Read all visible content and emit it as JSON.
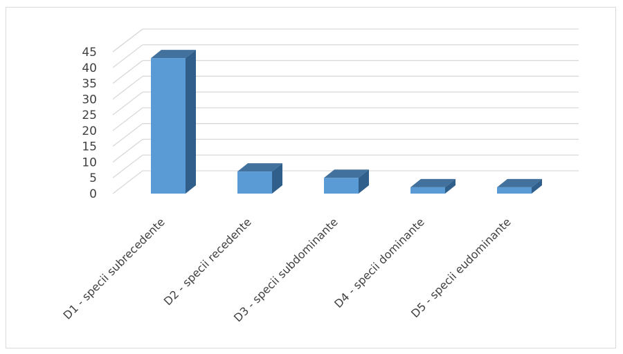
{
  "chart_data": {
    "type": "bar",
    "title": "",
    "xlabel": "",
    "ylabel": "",
    "categories": [
      "D1 - specii subrecedente",
      "D2 - specii recedente",
      "D3 - specii subdominante",
      "D4 - specii dominante",
      "D5 - specii eudominante"
    ],
    "values": [
      43,
      7,
      5,
      2,
      2
    ],
    "ylim": [
      0,
      45
    ],
    "yticks": [
      "0",
      "5",
      "10",
      "15",
      "20",
      "25",
      "30",
      "35",
      "40",
      "45"
    ],
    "grid": true,
    "legend": "none",
    "style": "3d-column",
    "colors": {
      "front": "#5b9bd5",
      "top": "#41719c",
      "side": "#2f5f8a",
      "grid": "#d9d9d9",
      "text": "#404040"
    }
  }
}
